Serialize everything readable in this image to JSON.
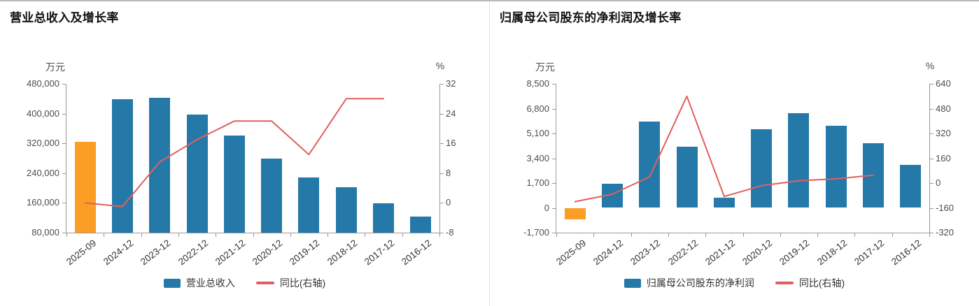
{
  "page": {
    "background": "#ffffff",
    "top_border_color": "#b4bac0",
    "divider_color": "#e2e2e2"
  },
  "colors": {
    "bar": "#2579A9",
    "bar_highlight": "#FA9E26",
    "line": "#E0605D",
    "axis_line": "#999999",
    "tick_label": "#4d4d4d",
    "x_label": "#333333",
    "title": "#111111",
    "legend_text": "#333333"
  },
  "panels": [
    {
      "title": "营业总收入及增长率",
      "left_axis_unit": "万元",
      "right_axis_unit": "%",
      "legend_bar_label": "营业总收入",
      "legend_line_label": "同比(右轴)"
    },
    {
      "title": "归属母公司股东的净利润及增长率",
      "left_axis_unit": "万元",
      "right_axis_unit": "%",
      "legend_bar_label": "归属母公司股东的净利润",
      "legend_line_label": "同比(右轴)"
    }
  ],
  "chart_data": [
    {
      "type": "bar",
      "title": "营业总收入及增长率",
      "categories": [
        "2025-09",
        "2024-12",
        "2023-12",
        "2022-12",
        "2021-12",
        "2020-12",
        "2019-12",
        "2018-12",
        "2017-12",
        "2016-12"
      ],
      "series": [
        {
          "name": "营业总收入",
          "type": "bar",
          "axis": "left",
          "unit": "万元",
          "highlight_index": 0,
          "values": [
            324000,
            438000,
            443000,
            398000,
            341000,
            279000,
            229000,
            203000,
            159000,
            123000
          ]
        },
        {
          "name": "同比(右轴)",
          "type": "line",
          "axis": "right",
          "unit": "%",
          "values": [
            0,
            -1,
            11,
            17,
            22,
            22,
            13,
            28,
            28,
            null
          ]
        }
      ],
      "left_axis": {
        "label": "万元",
        "min": 80000,
        "max": 480000,
        "ticks": [
          480000,
          400000,
          320000,
          240000,
          160000,
          80000
        ]
      },
      "right_axis": {
        "label": "%",
        "min": -8,
        "max": 32,
        "ticks": [
          32,
          24,
          16,
          8,
          0,
          -8
        ]
      },
      "legend_position": "bottom",
      "grid": false
    },
    {
      "type": "bar",
      "title": "归属母公司股东的净利润及增长率",
      "categories": [
        "2025-09",
        "2024-12",
        "2023-12",
        "2022-12",
        "2021-12",
        "2020-12",
        "2019-12",
        "2018-12",
        "2017-12",
        "2016-12"
      ],
      "series": [
        {
          "name": "归属母公司股东的净利润",
          "type": "bar",
          "axis": "left",
          "unit": "万元",
          "highlight_index": 0,
          "values": [
            -800,
            1650,
            5900,
            4200,
            700,
            5400,
            6500,
            5650,
            4450,
            2950
          ]
        },
        {
          "name": "同比(右轴)",
          "type": "line",
          "axis": "right",
          "unit": "%",
          "values": [
            -120,
            -72,
            40,
            560,
            -87,
            -17,
            15,
            27,
            51,
            null
          ]
        }
      ],
      "left_axis": {
        "label": "万元",
        "min": -1700,
        "max": 8500,
        "ticks": [
          8500,
          6800,
          5100,
          3400,
          1700,
          0,
          -1700
        ]
      },
      "right_axis": {
        "label": "%",
        "min": -320,
        "max": 640,
        "ticks": [
          640,
          480,
          320,
          160,
          0,
          -160,
          -320
        ]
      },
      "legend_position": "bottom",
      "grid": false
    }
  ]
}
